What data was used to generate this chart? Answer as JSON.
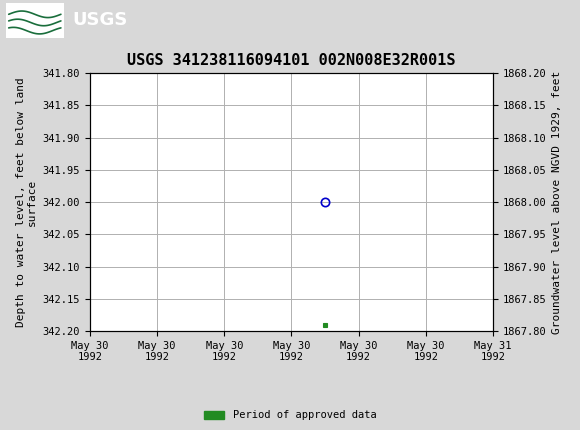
{
  "title": "USGS 341238116094101 002N008E32R001S",
  "ylabel_left": "Depth to water level, feet below land\nsurface",
  "ylabel_right": "Groundwater level above NGVD 1929, feet",
  "ylim_left": [
    342.2,
    341.8
  ],
  "ylim_right": [
    1867.8,
    1868.2
  ],
  "yticks_left": [
    341.8,
    341.85,
    341.9,
    341.95,
    342.0,
    342.05,
    342.1,
    342.15,
    342.2
  ],
  "yticks_right": [
    1868.2,
    1868.15,
    1868.1,
    1868.05,
    1868.0,
    1867.95,
    1867.9,
    1867.85,
    1867.8
  ],
  "xtick_labels": [
    "May 30\n1992",
    "May 30\n1992",
    "May 30\n1992",
    "May 30\n1992",
    "May 30\n1992",
    "May 30\n1992",
    "May 31\n1992"
  ],
  "data_point_x": 3.5,
  "data_point_y": 342.0,
  "green_point_x": 3.5,
  "green_point_y": 342.19,
  "xlim": [
    0,
    6
  ],
  "xtick_positions": [
    0,
    1,
    2,
    3,
    4,
    5,
    6
  ],
  "header_color": "#1a6e3c",
  "background_color": "#d8d8d8",
  "plot_bg_color": "#ffffff",
  "grid_color": "#b0b0b0",
  "legend_label": "Period of approved data",
  "legend_color": "#228B22",
  "circle_color": "#0000cc",
  "green_sq_color": "#228B22",
  "title_fontsize": 11,
  "axis_label_fontsize": 8,
  "tick_fontsize": 7.5
}
